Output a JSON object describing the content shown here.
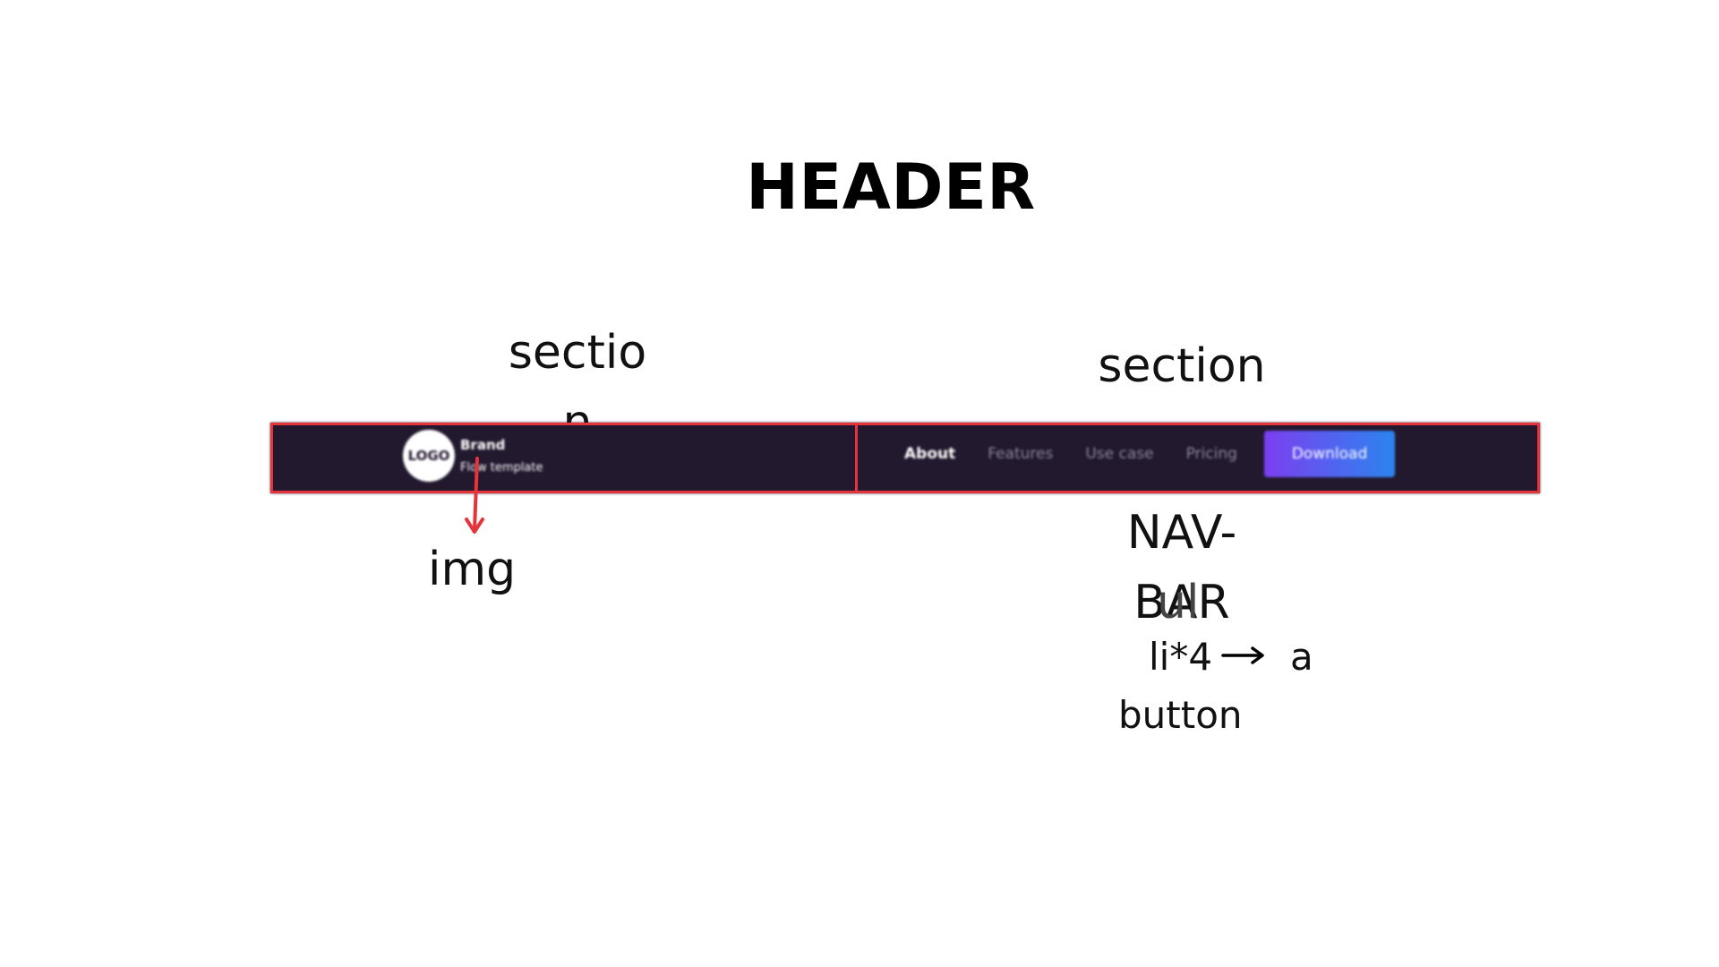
{
  "title": "HEADER",
  "labels": {
    "section_left": "section",
    "section_right": "section",
    "img": "img",
    "navbar": "NAV-BAR",
    "ul": "ul",
    "li": "li*4",
    "a": "a",
    "button": "button"
  },
  "mockup": {
    "logo_text": "LOGO",
    "brand_name": "Brand",
    "brand_tagline": "Flow template",
    "nav_items": [
      "About",
      "Features",
      "Use case",
      "Pricing"
    ],
    "active_nav_item": "About",
    "download_label": "Download"
  },
  "colors": {
    "banner_background": "#22192f",
    "outline": "#e5343b",
    "button_gradient_start": "#7b3ff0",
    "button_gradient_end": "#2c84ee"
  }
}
